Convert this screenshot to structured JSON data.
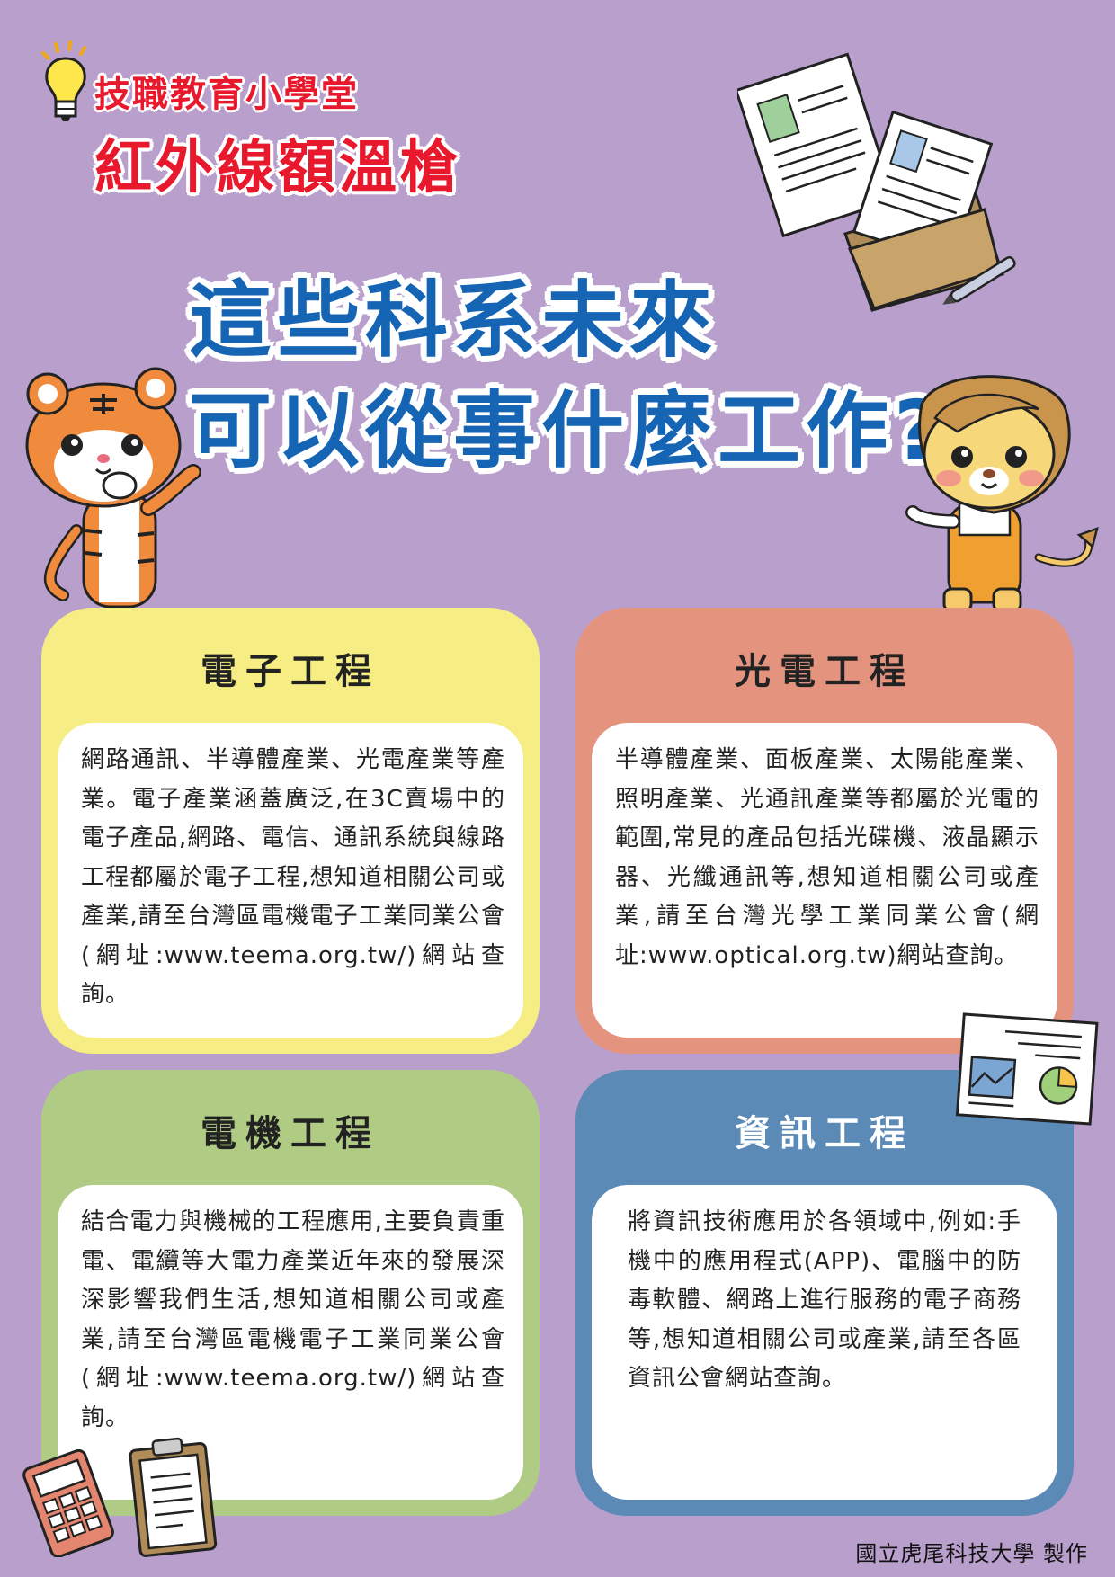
{
  "header": {
    "series": "技職教育小學堂",
    "title": "紅外線額溫槍"
  },
  "question": {
    "line1": "這些科系未來",
    "line2": "可以從事什麼工作?"
  },
  "cards": [
    {
      "title": "電子工程",
      "body": "網路通訊、半導體產業、光電產業等產業。電子產業涵蓋廣泛,在3C賣場中的電子產品,網路、電信、通訊系統與線路工程都屬於電子工程,想知道相關公司或產業,請至台灣區電機電子工業同業公會(網址:www.teema.org.tw/)網站查詢。"
    },
    {
      "title": "光電工程",
      "body": "半導體產業、面板產業、太陽能產業、照明產業、光通訊產業等都屬於光電的範圍,常見的產品包括光碟機、液晶顯示器、光纖通訊等,想知道相關公司或產業,請至台灣光學工業同業公會(網址:www.optical.org.tw)網站查詢。"
    },
    {
      "title": "電機工程",
      "body": "結合電力與機械的工程應用,主要負責重電、電纜等大電力產業近年來的發展深深影響我們生活,想知道相關公司或產業,請至台灣區電機電子工業同業公會(網址:www.teema.org.tw/)網站查詢。"
    },
    {
      "title": "資訊工程",
      "body": "將資訊技術應用於各領域中,例如:手機中的應用程式(APP)、電腦中的防毒軟體、網路上進行服務的電子商務等,想知道相關公司或產業,請至各區資訊公會網站查詢。"
    }
  ],
  "footer": "國立虎尾科技大學 製作",
  "colors": {
    "background": "#b9a0cc",
    "card_electronics": "#f6ee84",
    "card_optoelectronics": "#e4937f",
    "card_electrical": "#b0cc84",
    "card_information": "#5b8ab7",
    "title_red": "#e8192c",
    "question_blue": "#1665b5"
  },
  "illustrations": [
    "lightbulb-icon",
    "documents-illustration",
    "folder-illustration",
    "pen-icon",
    "tiger-mascot",
    "lion-mascot",
    "chart-board-illustration",
    "calculator-icon",
    "clipboard-icon"
  ]
}
